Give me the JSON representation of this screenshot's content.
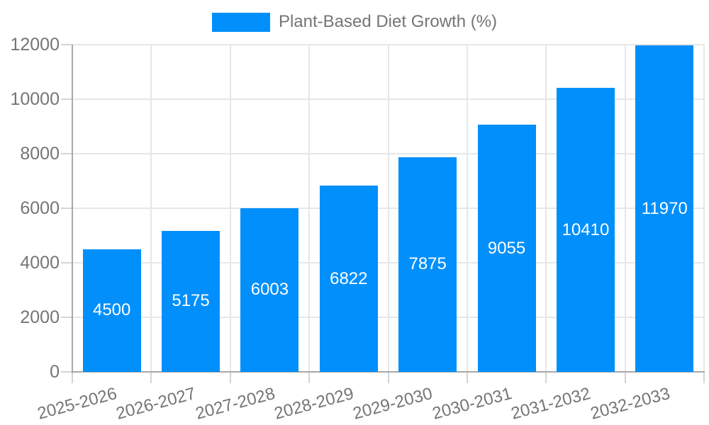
{
  "colors": {
    "accent": "#008FFB",
    "axis_text": "#757575",
    "grid": "#e7e7e7",
    "tick": "#d4d4d4",
    "axis_line": "#a8a8a8",
    "value_label": "#ffffff",
    "background": "#ffffff"
  },
  "legend": {
    "label": "Plant-Based Diet Growth (%)",
    "marker_color": "#008FFB",
    "position": "top"
  },
  "chart_data": {
    "type": "bar",
    "title": "Plant-Based Diet Growth (%)",
    "categories": [
      "2025-2026",
      "2026-2027",
      "2027-2028",
      "2028-2029",
      "2029-2030",
      "2030-2031",
      "2031-2032",
      "2032-2033"
    ],
    "series": [
      {
        "name": "Plant-Based Diet Growth (%)",
        "values": [
          4500,
          5175,
          6003,
          6822,
          7875,
          9055,
          10410,
          11970
        ]
      }
    ],
    "value_labels": "inside-center",
    "xlabel": "",
    "ylabel": "",
    "ylim": [
      0,
      12000
    ],
    "yticks": [
      0,
      2000,
      4000,
      6000,
      8000,
      10000,
      12000
    ],
    "grid": true,
    "legend_position": "top",
    "x_label_rotation_deg": -15
  }
}
